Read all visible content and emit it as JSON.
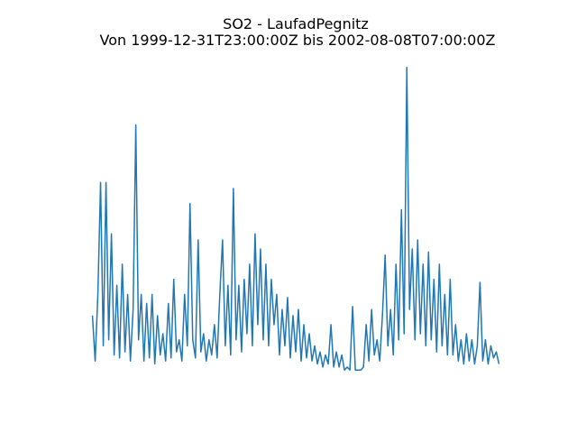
{
  "chart_data": {
    "type": "line",
    "title": "SO2 - LaufadPegnitz",
    "subtitle": "Von 1999-12-31T23:00:00Z bis 2002-08-08T07:00:00Z",
    "color": "#1f77b4",
    "ylim": [
      -5,
      105
    ],
    "values": [
      18,
      3,
      25,
      62,
      8,
      62,
      10,
      45,
      5,
      28,
      4,
      35,
      6,
      25,
      3,
      20,
      81,
      10,
      25,
      3,
      22,
      4,
      25,
      2,
      18,
      5,
      12,
      3,
      22,
      4,
      30,
      6,
      10,
      3,
      25,
      8,
      55,
      10,
      4,
      43,
      6,
      12,
      3,
      10,
      5,
      15,
      4,
      25,
      43,
      8,
      28,
      5,
      60,
      10,
      28,
      6,
      30,
      12,
      35,
      8,
      45,
      15,
      40,
      10,
      35,
      8,
      30,
      15,
      25,
      5,
      20,
      8,
      24,
      4,
      18,
      6,
      20,
      3,
      15,
      4,
      12,
      3,
      8,
      2,
      6,
      1,
      5,
      2,
      15,
      1,
      6,
      1,
      5,
      0,
      1,
      0,
      21,
      0,
      0,
      0,
      1,
      15,
      3,
      20,
      5,
      10,
      3,
      18,
      38,
      8,
      20,
      5,
      35,
      10,
      53,
      12,
      100,
      20,
      40,
      10,
      43,
      12,
      35,
      8,
      39,
      10,
      30,
      6,
      35,
      8,
      25,
      5,
      30,
      5,
      15,
      3,
      10,
      2,
      12,
      3,
      10,
      2,
      8,
      29,
      3,
      10,
      2,
      8,
      4,
      6,
      2
    ]
  }
}
